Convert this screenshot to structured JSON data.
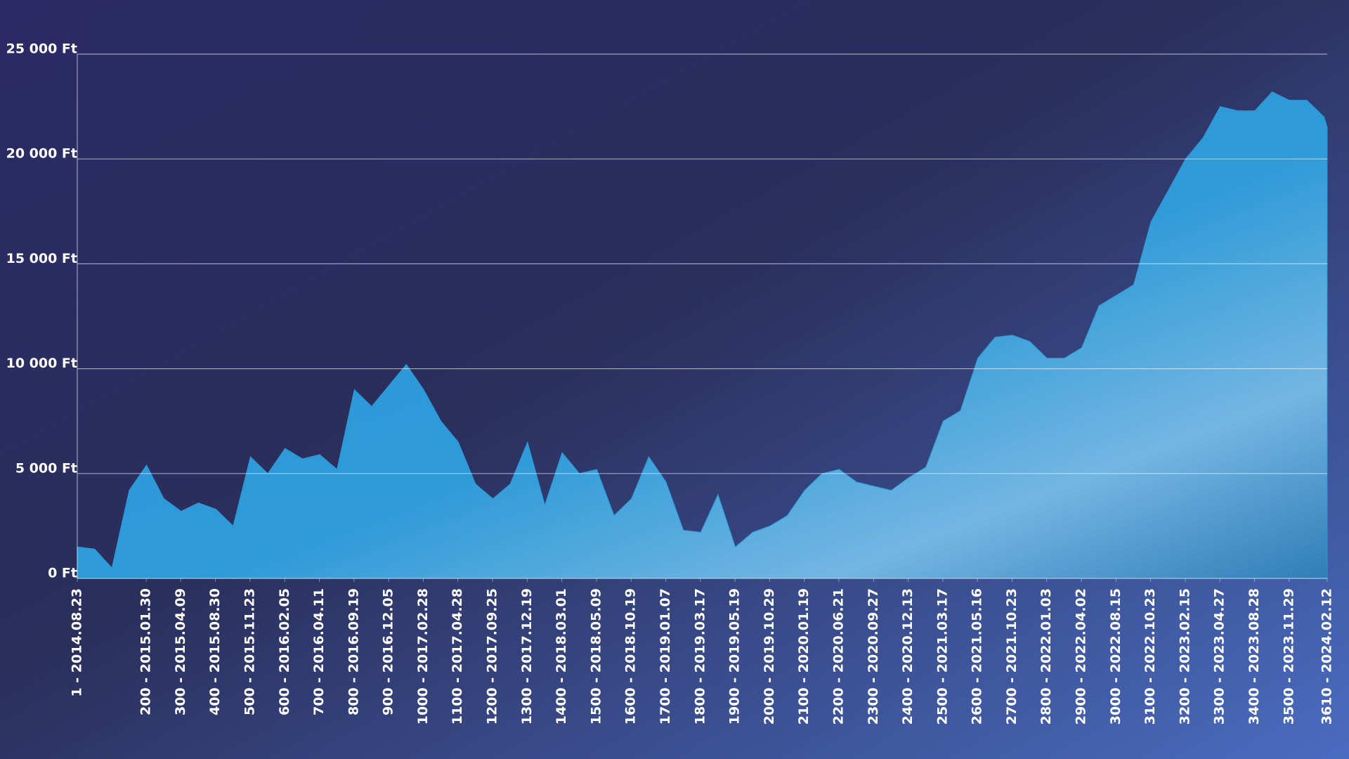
{
  "chart_data": {
    "type": "area",
    "color": "#2a96d6",
    "x": [
      1,
      51,
      101,
      151,
      201,
      251,
      301,
      351,
      401,
      451,
      501,
      551,
      601,
      651,
      701,
      751,
      801,
      851,
      901,
      951,
      1001,
      1051,
      1101,
      1151,
      1201,
      1251,
      1301,
      1351,
      1401,
      1451,
      1501,
      1551,
      1601,
      1651,
      1701,
      1751,
      1801,
      1851,
      1901,
      1951,
      2001,
      2051,
      2101,
      2151,
      2201,
      2251,
      2301,
      2351,
      2401,
      2451,
      2501,
      2551,
      2601,
      2651,
      2701,
      2751,
      2801,
      2851,
      2901,
      2951,
      3001,
      3051,
      3101,
      3151,
      3201,
      3251,
      3301,
      3351,
      3401,
      3451,
      3501,
      3551,
      3601,
      3610
    ],
    "values": [
      1500,
      1400,
      500,
      4200,
      5400,
      3800,
      3200,
      3600,
      3300,
      2500,
      5800,
      5000,
      6200,
      5700,
      5900,
      5200,
      9000,
      8200,
      9200,
      10200,
      9000,
      7500,
      6500,
      4500,
      3800,
      4500,
      6500,
      3500,
      6000,
      5000,
      5200,
      3000,
      3800,
      5800,
      4600,
      2300,
      2200,
      4000,
      1500,
      2200,
      2500,
      3000,
      4200,
      5000,
      5200,
      4600,
      4400,
      4200,
      4800,
      5300,
      7500,
      8000,
      10500,
      11500,
      11600,
      11300,
      10500,
      10500,
      11000,
      13000,
      13500,
      14000,
      17000,
      18500,
      20000,
      21000,
      22500,
      22300,
      22300,
      23200,
      22800,
      22800,
      22000,
      21500
    ],
    "xlim": [
      1,
      3610
    ],
    "xticks": [
      {
        "value": 1,
        "label": "1 - 2014.08.23"
      },
      {
        "value": 200,
        "label": "200 - 2015.01.30"
      },
      {
        "value": 300,
        "label": "300 - 2015.04.09"
      },
      {
        "value": 400,
        "label": "400 - 2015.08.30"
      },
      {
        "value": 500,
        "label": "500 - 2015.11.23"
      },
      {
        "value": 600,
        "label": "600 - 2016.02.05"
      },
      {
        "value": 700,
        "label": "700 - 2016.04.11"
      },
      {
        "value": 800,
        "label": "800 - 2016.09.19"
      },
      {
        "value": 900,
        "label": "900 - 2016.12.05"
      },
      {
        "value": 1000,
        "label": "1000 - 2017.02.28"
      },
      {
        "value": 1100,
        "label": "1100 - 2017.04.28"
      },
      {
        "value": 1200,
        "label": "1200 - 2017.09.25"
      },
      {
        "value": 1300,
        "label": "1300 - 2017.12.19"
      },
      {
        "value": 1400,
        "label": "1400 - 2018.03.01"
      },
      {
        "value": 1500,
        "label": "1500 - 2018.05.09"
      },
      {
        "value": 1600,
        "label": "1600 - 2018.10.19"
      },
      {
        "value": 1700,
        "label": "1700 - 2019.01.07"
      },
      {
        "value": 1800,
        "label": "1800 - 2019.03.17"
      },
      {
        "value": 1900,
        "label": "1900 - 2019.05.19"
      },
      {
        "value": 2000,
        "label": "2000 - 2019.10.29"
      },
      {
        "value": 2100,
        "label": "2100 - 2020.01.19"
      },
      {
        "value": 2200,
        "label": "2200 - 2020.06.21"
      },
      {
        "value": 2300,
        "label": "2300 - 2020.09.27"
      },
      {
        "value": 2400,
        "label": "2400 - 2020.12.13"
      },
      {
        "value": 2500,
        "label": "2500 - 2021.03.17"
      },
      {
        "value": 2600,
        "label": "2600 - 2021.05.16"
      },
      {
        "value": 2700,
        "label": "2700 - 2021.10.23"
      },
      {
        "value": 2800,
        "label": "2800 - 2022.01.03"
      },
      {
        "value": 2900,
        "label": "2900 - 2022.04.02"
      },
      {
        "value": 3000,
        "label": "3000 - 2022.08.15"
      },
      {
        "value": 3100,
        "label": "3100 - 2022.10.23"
      },
      {
        "value": 3200,
        "label": "3200 - 2023.02.15"
      },
      {
        "value": 3300,
        "label": "3300 - 2023.04.27"
      },
      {
        "value": 3400,
        "label": "3400 - 2023.08.28"
      },
      {
        "value": 3500,
        "label": "3500 - 2023.11.29"
      },
      {
        "value": 3610,
        "label": "3610 - 2024.02.12"
      }
    ],
    "ylim": [
      0,
      25000
    ],
    "yticks": [
      {
        "value": 0,
        "label": "0 Ft"
      },
      {
        "value": 5000,
        "label": "5 000 Ft"
      },
      {
        "value": 10000,
        "label": "10 000 Ft"
      },
      {
        "value": 15000,
        "label": "15 000 Ft"
      },
      {
        "value": 20000,
        "label": "20 000 Ft"
      },
      {
        "value": 25000,
        "label": "25 000 Ft"
      }
    ],
    "grid": true
  }
}
